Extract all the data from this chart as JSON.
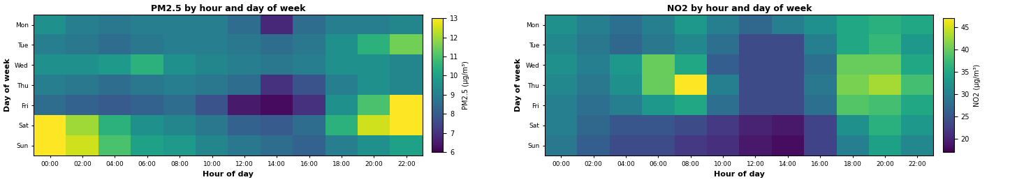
{
  "title1": "PM2.5 by hour and day of week",
  "title2": "NO2 by hour and day of week",
  "xlabel": "Hour of day",
  "ylabel": "Day of week",
  "cbar_label1": "PM2.5 (μg/m³)",
  "cbar_label2": "NO2 (μg/m³)",
  "days": [
    "Mon",
    "Tue",
    "Wed",
    "Thu",
    "Fri",
    "Sat",
    "Sun"
  ],
  "hours": [
    "00:00",
    "02:00",
    "04:00",
    "06:00",
    "08:00",
    "10:00",
    "12:00",
    "14:00",
    "16:00",
    "18:00",
    "20:00",
    "22:00"
  ],
  "pm25_vmin": 6,
  "pm25_vmax": 13,
  "no2_vmin": 17,
  "no2_vmax": 47,
  "pm25_data": [
    [
      9.5,
      9.0,
      8.8,
      9.0,
      9.0,
      9.0,
      8.5,
      6.8,
      8.5,
      9.0,
      9.0,
      9.2
    ],
    [
      9.0,
      8.8,
      8.5,
      8.8,
      9.0,
      9.0,
      8.8,
      8.5,
      8.8,
      9.5,
      10.5,
      11.5
    ],
    [
      9.5,
      9.5,
      9.8,
      10.5,
      9.5,
      9.2,
      9.0,
      8.8,
      9.0,
      9.5,
      9.5,
      9.2
    ],
    [
      9.0,
      8.8,
      8.5,
      8.8,
      9.0,
      8.8,
      8.5,
      7.0,
      7.8,
      9.0,
      9.5,
      9.2
    ],
    [
      8.5,
      8.2,
      8.0,
      8.2,
      8.5,
      7.8,
      6.5,
      6.2,
      7.0,
      9.5,
      11.0,
      13.0
    ],
    [
      13.0,
      12.0,
      10.5,
      9.5,
      9.2,
      8.8,
      8.2,
      8.0,
      8.5,
      10.5,
      12.5,
      13.5
    ],
    [
      13.5,
      12.5,
      11.0,
      10.0,
      9.8,
      9.2,
      8.8,
      8.5,
      8.2,
      9.0,
      9.5,
      10.0
    ]
  ],
  "no2_data": [
    [
      32,
      30,
      28,
      30,
      33,
      30,
      27,
      30,
      32,
      35,
      36,
      35
    ],
    [
      31,
      29,
      27,
      29,
      31,
      28,
      24,
      24,
      30,
      35,
      37,
      33
    ],
    [
      32,
      30,
      33,
      40,
      35,
      26,
      24,
      24,
      28,
      40,
      40,
      35
    ],
    [
      31,
      29,
      32,
      40,
      47,
      30,
      24,
      24,
      29,
      41,
      43,
      38
    ],
    [
      30,
      28,
      30,
      33,
      35,
      28,
      24,
      24,
      28,
      39,
      38,
      35
    ],
    [
      30,
      27,
      25,
      25,
      24,
      22,
      20,
      19,
      23,
      32,
      36,
      33
    ],
    [
      29,
      26,
      24,
      24,
      22,
      21,
      19,
      18,
      23,
      30,
      34,
      31
    ]
  ],
  "cmap": "viridis",
  "background_color": "#ffffff",
  "figsize": [
    14.56,
    2.61
  ],
  "dpi": 100
}
